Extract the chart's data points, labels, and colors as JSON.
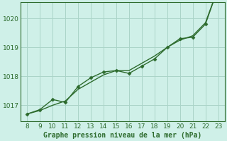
{
  "x": [
    8,
    9,
    10,
    11,
    12,
    13,
    14,
    15,
    16,
    17,
    18,
    19,
    20,
    21,
    22,
    23
  ],
  "y_actual": [
    1016.7,
    1016.85,
    1017.2,
    1017.1,
    1017.65,
    1017.95,
    1018.15,
    1018.2,
    1018.1,
    1018.35,
    1018.6,
    1019.0,
    1019.3,
    1019.35,
    1019.8,
    1021.05
  ],
  "y_trend": [
    1016.7,
    1016.82,
    1017.0,
    1017.15,
    1017.55,
    1017.8,
    1018.05,
    1018.2,
    1018.2,
    1018.45,
    1018.7,
    1019.0,
    1019.25,
    1019.4,
    1019.85,
    1021.05
  ],
  "xlabel": "Graphe pression niveau de la mer (hPa)",
  "xlim": [
    7.5,
    23.5
  ],
  "ylim": [
    1016.45,
    1020.55
  ],
  "yticks": [
    1017,
    1018,
    1019,
    1020
  ],
  "xticks": [
    8,
    9,
    10,
    11,
    12,
    13,
    14,
    15,
    16,
    17,
    18,
    19,
    20,
    21,
    22,
    23
  ],
  "line_color": "#2d6b2d",
  "bg_color": "#cff0e8",
  "grid_color": "#aad4c8",
  "xlabel_color": "#2d6b2d",
  "marker": "D",
  "marker_size": 2.5,
  "linewidth": 1.0
}
